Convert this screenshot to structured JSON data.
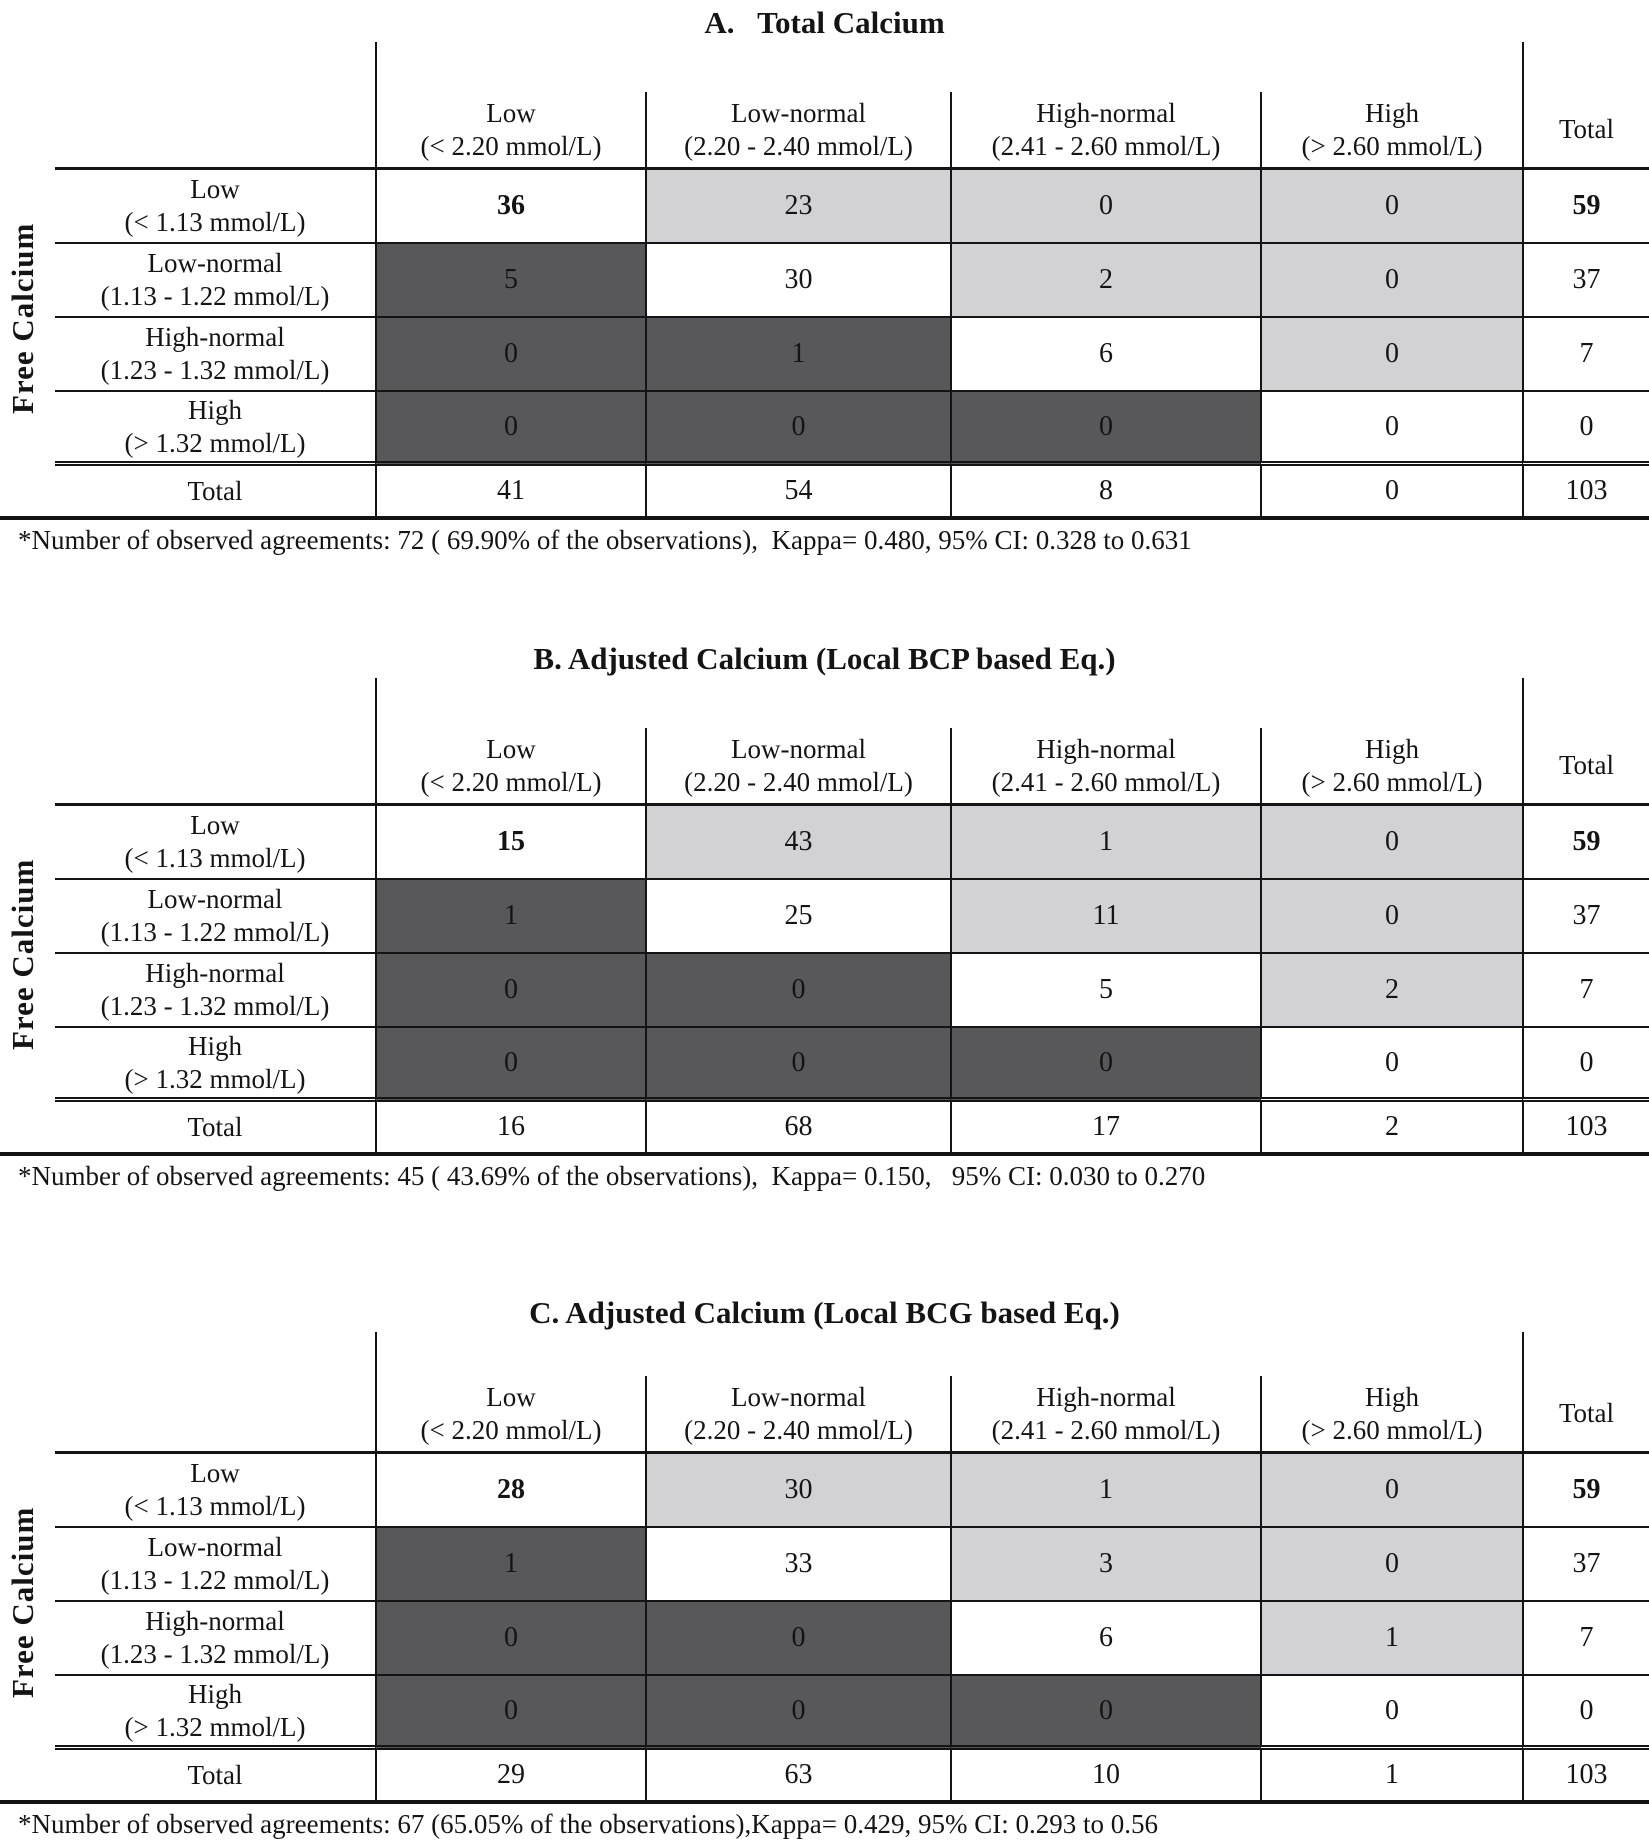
{
  "figure": {
    "side_label": "Free Calcium",
    "total_label": "Total",
    "col_headers": [
      {
        "line1": "Low",
        "line2": "(< 2.20 mmol/L)"
      },
      {
        "line1": "Low-normal",
        "line2": "(2.20 - 2.40 mmol/L)"
      },
      {
        "line1": "High-normal",
        "line2": "(2.41 - 2.60 mmol/L)"
      },
      {
        "line1": "High",
        "line2": "(> 2.60 mmol/L)"
      }
    ],
    "row_headers": [
      {
        "line1": "Low",
        "line2": "(< 1.13 mmol/L)"
      },
      {
        "line1": "Low-normal",
        "line2": "(1.13 - 1.22 mmol/L)"
      },
      {
        "line1": "High-normal",
        "line2": "(1.23 - 1.32 mmol/L)"
      },
      {
        "line1": "High",
        "line2": "(> 1.32 mmol/L)"
      }
    ],
    "tables": [
      {
        "id": "A",
        "title": "A.   Total Calcium",
        "rows": [
          [
            36,
            23,
            0,
            0,
            59
          ],
          [
            5,
            30,
            2,
            0,
            37
          ],
          [
            0,
            1,
            6,
            0,
            7
          ],
          [
            0,
            0,
            0,
            0,
            0
          ]
        ],
        "totals": [
          41,
          54,
          8,
          0,
          103
        ],
        "footnote": "*Number of observed agreements: 72 ( 69.90% of the observations),  Kappa= 0.480, 95% CI: 0.328 to 0.631"
      },
      {
        "id": "B",
        "title": "B. Adjusted Calcium (Local BCP based Eq.)",
        "rows": [
          [
            15,
            43,
            1,
            0,
            59
          ],
          [
            1,
            25,
            11,
            0,
            37
          ],
          [
            0,
            0,
            5,
            2,
            7
          ],
          [
            0,
            0,
            0,
            0,
            0
          ]
        ],
        "totals": [
          16,
          68,
          17,
          2,
          103
        ],
        "footnote": "*Number of observed agreements: 45 ( 43.69% of the observations),  Kappa= 0.150,   95% CI: 0.030 to 0.270"
      },
      {
        "id": "C",
        "title": "C. Adjusted Calcium (Local BCG based Eq.)",
        "rows": [
          [
            28,
            30,
            1,
            0,
            59
          ],
          [
            1,
            33,
            3,
            0,
            37
          ],
          [
            0,
            0,
            6,
            1,
            7
          ],
          [
            0,
            0,
            0,
            0,
            0
          ]
        ],
        "totals": [
          29,
          63,
          10,
          1,
          103
        ],
        "footnote": "*Number of observed agreements: 67 (65.05% of the observations),Kappa= 0.429, 95% CI: 0.293 to 0.56"
      }
    ],
    "colors": {
      "dark_cell": "#58585a",
      "light_cell": "#d2d2d4",
      "border": "#141414"
    }
  }
}
